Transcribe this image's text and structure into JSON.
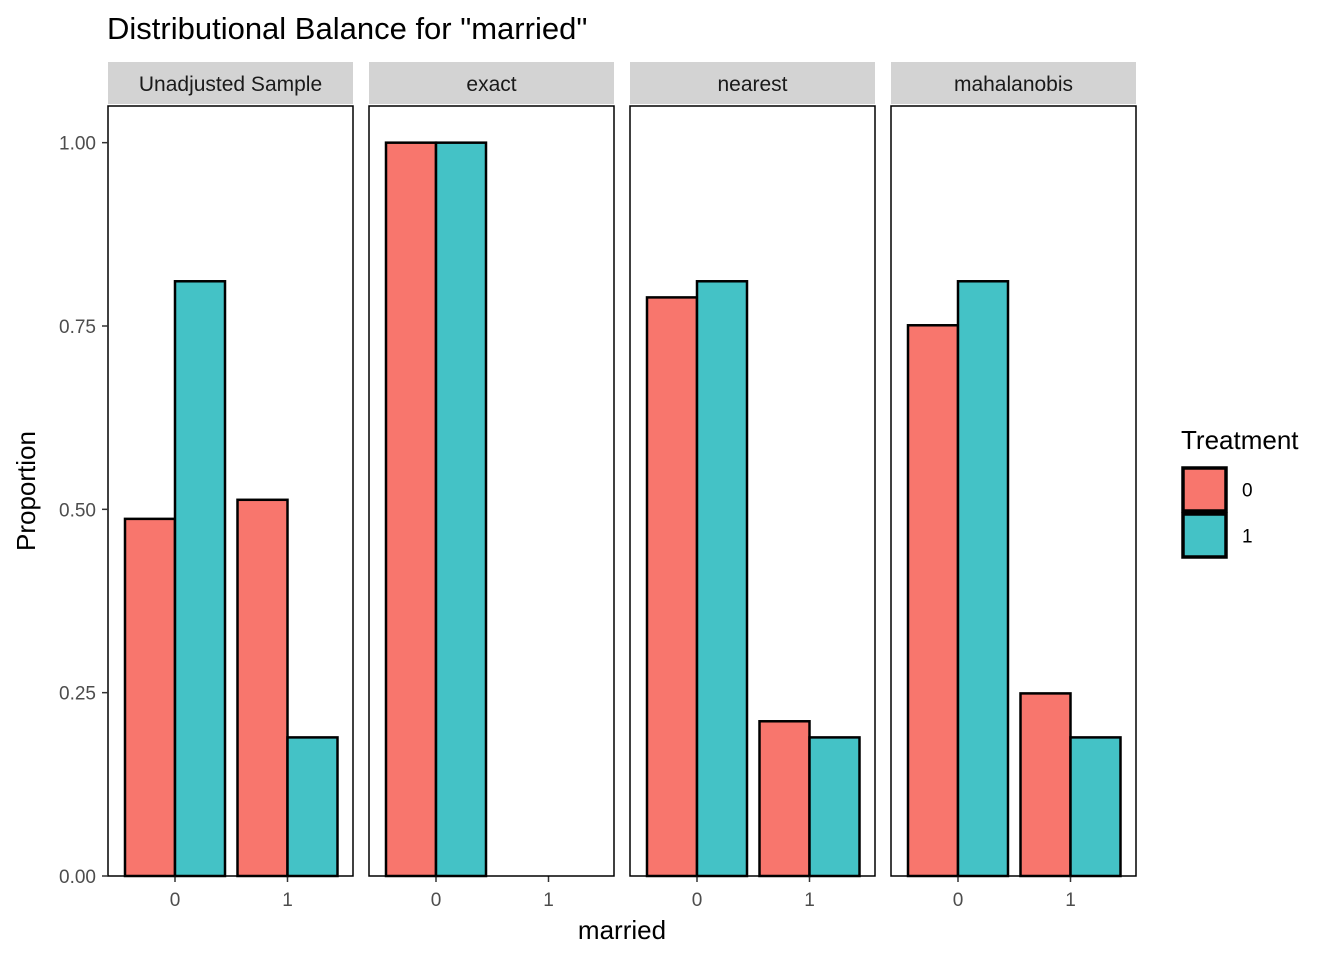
{
  "chart_data": {
    "type": "bar",
    "title": "Distributional Balance for \"married\"",
    "xlabel": "married",
    "ylabel": "Proportion",
    "ylim": [
      0,
      1.05
    ],
    "yticks": [
      "0.00",
      "0.25",
      "0.50",
      "0.75",
      "1.00"
    ],
    "categories": [
      "0",
      "1"
    ],
    "grid": false,
    "legend": {
      "title": "Treatment",
      "position": "right",
      "entries": [
        "0",
        "1"
      ]
    },
    "colors": {
      "0": "#F8766D",
      "1": "#44C2C6"
    },
    "facets": [
      {
        "label": "Unadjusted Sample",
        "series": [
          {
            "name": "0",
            "values": [
              0.487,
              0.513
            ]
          },
          {
            "name": "1",
            "values": [
              0.811,
              0.189
            ]
          }
        ]
      },
      {
        "label": "exact",
        "series": [
          {
            "name": "0",
            "values": [
              1.0,
              0.0
            ]
          },
          {
            "name": "1",
            "values": [
              1.0,
              0.0
            ]
          }
        ]
      },
      {
        "label": "nearest",
        "series": [
          {
            "name": "0",
            "values": [
              0.789,
              0.211
            ]
          },
          {
            "name": "1",
            "values": [
              0.811,
              0.189
            ]
          }
        ]
      },
      {
        "label": "mahalanobis",
        "series": [
          {
            "name": "0",
            "values": [
              0.751,
              0.249
            ]
          },
          {
            "name": "1",
            "values": [
              0.811,
              0.189
            ]
          }
        ]
      }
    ]
  }
}
